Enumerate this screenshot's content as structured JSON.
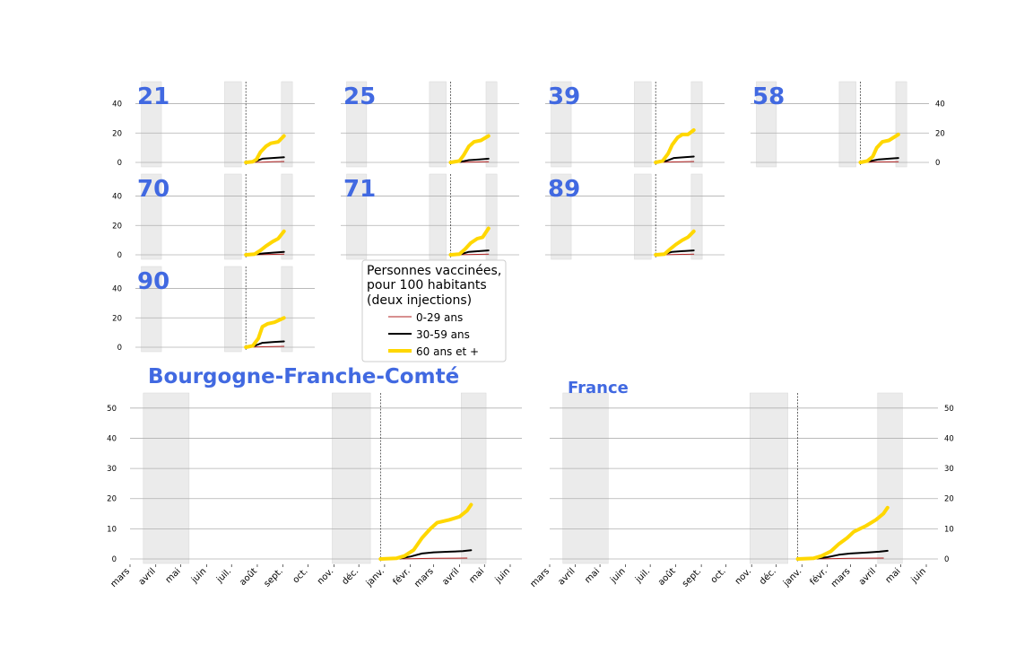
{
  "colors": {
    "title": "#4169e1",
    "shade": "#ebebeb",
    "grid": "#b0b0b0",
    "series": [
      "#b22222",
      "#000000",
      "#ffd700"
    ]
  },
  "legend": {
    "title_lines": [
      "Personnes vaccinées,",
      "pour 100 habitants",
      "(deux injections)"
    ],
    "entries": [
      "0-29 ans",
      "30-59 ans",
      "60 ans et +"
    ]
  },
  "chart_data": [
    {
      "type": "line",
      "title": "21",
      "x_axis": "date (2020-03 to 2021-06)",
      "ylim": [
        0,
        55
      ],
      "yticks": [
        0,
        20,
        40
      ],
      "shaded_periods": [
        [
          "2020-03-17",
          "2020-05-11"
        ],
        [
          "2020-10-30",
          "2020-12-15"
        ],
        [
          "2021-04-03",
          "2021-05-03"
        ]
      ],
      "vline": "2020-12-27",
      "series": [
        {
          "name": "0-29 ans",
          "x": [
            "2020-12-27",
            "2021-02-10",
            "2021-03-10",
            "2021-04-10"
          ],
          "values": [
            0,
            0.2,
            0.4,
            0.6
          ]
        },
        {
          "name": "30-59 ans",
          "x": [
            "2020-12-27",
            "2021-01-20",
            "2021-02-10",
            "2021-03-10",
            "2021-04-10"
          ],
          "values": [
            0,
            0.5,
            2.5,
            3,
            3.5
          ]
        },
        {
          "name": "60 ans et +",
          "x": [
            "2020-12-27",
            "2021-01-15",
            "2021-01-25",
            "2021-02-05",
            "2021-02-20",
            "2021-03-05",
            "2021-03-25",
            "2021-04-10"
          ],
          "values": [
            0,
            0.5,
            2,
            7,
            11,
            13,
            14,
            18
          ]
        }
      ]
    },
    {
      "type": "line",
      "title": "25",
      "x_axis": "date (2020-03 to 2021-06)",
      "ylim": [
        0,
        55
      ],
      "yticks": [
        0,
        20,
        40
      ],
      "shaded_periods": [
        [
          "2020-03-17",
          "2020-05-11"
        ],
        [
          "2020-10-30",
          "2020-12-15"
        ],
        [
          "2021-04-03",
          "2021-05-03"
        ]
      ],
      "vline": "2020-12-27",
      "series": [
        {
          "name": "0-29 ans",
          "x": [
            "2020-12-27",
            "2021-02-10",
            "2021-04-10"
          ],
          "values": [
            0,
            0.2,
            0.5
          ]
        },
        {
          "name": "30-59 ans",
          "x": [
            "2020-12-27",
            "2021-01-25",
            "2021-02-15",
            "2021-03-15",
            "2021-04-10"
          ],
          "values": [
            0,
            0.5,
            1.5,
            2,
            2.5
          ]
        },
        {
          "name": "60 ans et +",
          "x": [
            "2020-12-27",
            "2021-01-20",
            "2021-02-01",
            "2021-02-15",
            "2021-03-01",
            "2021-03-20",
            "2021-04-10"
          ],
          "values": [
            0,
            1,
            5,
            11,
            14,
            15,
            18
          ]
        }
      ]
    },
    {
      "type": "line",
      "title": "39",
      "x_axis": "date (2020-03 to 2021-06)",
      "ylim": [
        0,
        55
      ],
      "yticks": [
        0,
        20,
        40
      ],
      "shaded_periods": [
        [
          "2020-03-17",
          "2020-05-11"
        ],
        [
          "2020-10-30",
          "2020-12-15"
        ],
        [
          "2021-04-03",
          "2021-05-03"
        ]
      ],
      "vline": "2020-12-27",
      "series": [
        {
          "name": "0-29 ans",
          "x": [
            "2020-12-27",
            "2021-02-10",
            "2021-04-10"
          ],
          "values": [
            0,
            0.3,
            0.6
          ]
        },
        {
          "name": "30-59 ans",
          "x": [
            "2020-12-27",
            "2021-01-25",
            "2021-02-15",
            "2021-03-15",
            "2021-04-10"
          ],
          "values": [
            0,
            1,
            3,
            3.5,
            4
          ]
        },
        {
          "name": "60 ans et +",
          "x": [
            "2020-12-27",
            "2021-01-15",
            "2021-01-30",
            "2021-02-10",
            "2021-02-25",
            "2021-03-10",
            "2021-03-25",
            "2021-04-10"
          ],
          "values": [
            0,
            1,
            6,
            12,
            17,
            19,
            19,
            22
          ]
        }
      ]
    },
    {
      "type": "line",
      "title": "58",
      "x_axis": "date (2020-03 to 2021-06)",
      "ylim": [
        0,
        55
      ],
      "yticks": [
        0,
        20,
        40
      ],
      "shaded_periods": [
        [
          "2020-03-17",
          "2020-05-11"
        ],
        [
          "2020-10-30",
          "2020-12-15"
        ],
        [
          "2021-04-03",
          "2021-05-03"
        ]
      ],
      "vline": "2020-12-27",
      "series": [
        {
          "name": "0-29 ans",
          "x": [
            "2020-12-27",
            "2021-02-10",
            "2021-04-10"
          ],
          "values": [
            0,
            0.3,
            0.5
          ]
        },
        {
          "name": "30-59 ans",
          "x": [
            "2020-12-27",
            "2021-01-25",
            "2021-02-15",
            "2021-03-15",
            "2021-04-10"
          ],
          "values": [
            0,
            1,
            2,
            2.5,
            3
          ]
        },
        {
          "name": "60 ans et +",
          "x": [
            "2020-12-27",
            "2021-01-15",
            "2021-01-30",
            "2021-02-10",
            "2021-02-25",
            "2021-03-15",
            "2021-04-10"
          ],
          "values": [
            0,
            1,
            4,
            10,
            14,
            15,
            19
          ]
        }
      ]
    },
    {
      "type": "line",
      "title": "70",
      "x_axis": "date (2020-03 to 2021-06)",
      "ylim": [
        0,
        55
      ],
      "yticks": [
        0,
        20,
        40
      ],
      "shaded_periods": [
        [
          "2020-03-17",
          "2020-05-11"
        ],
        [
          "2020-10-30",
          "2020-12-15"
        ],
        [
          "2021-04-03",
          "2021-05-03"
        ]
      ],
      "vline": "2020-12-27",
      "series": [
        {
          "name": "0-29 ans",
          "x": [
            "2020-12-27",
            "2021-02-10",
            "2021-04-10"
          ],
          "values": [
            0,
            0.2,
            0.5
          ]
        },
        {
          "name": "30-59 ans",
          "x": [
            "2020-12-27",
            "2021-01-25",
            "2021-02-15",
            "2021-03-15",
            "2021-04-10"
          ],
          "values": [
            0,
            0.5,
            1,
            1.5,
            2
          ]
        },
        {
          "name": "60 ans et +",
          "x": [
            "2020-12-27",
            "2021-01-20",
            "2021-02-05",
            "2021-02-20",
            "2021-03-10",
            "2021-03-25",
            "2021-04-10"
          ],
          "values": [
            0,
            0.5,
            3,
            6,
            9,
            11,
            16
          ]
        }
      ]
    },
    {
      "type": "line",
      "title": "71",
      "x_axis": "date (2020-03 to 2021-06)",
      "ylim": [
        0,
        55
      ],
      "yticks": [
        0,
        20,
        40
      ],
      "shaded_periods": [
        [
          "2020-03-17",
          "2020-05-11"
        ],
        [
          "2020-10-30",
          "2020-12-15"
        ],
        [
          "2021-04-03",
          "2021-05-03"
        ]
      ],
      "vline": "2020-12-27",
      "series": [
        {
          "name": "0-29 ans",
          "x": [
            "2020-12-27",
            "2021-02-10",
            "2021-04-10"
          ],
          "values": [
            0,
            0.2,
            0.5
          ]
        },
        {
          "name": "30-59 ans",
          "x": [
            "2020-12-27",
            "2021-01-25",
            "2021-02-15",
            "2021-03-15",
            "2021-04-10"
          ],
          "values": [
            0,
            0.5,
            2,
            2.5,
            3
          ]
        },
        {
          "name": "60 ans et +",
          "x": [
            "2020-12-27",
            "2021-01-20",
            "2021-02-05",
            "2021-02-20",
            "2021-03-10",
            "2021-03-25",
            "2021-04-10"
          ],
          "values": [
            0,
            0.5,
            4,
            8,
            11,
            12,
            18
          ]
        }
      ]
    },
    {
      "type": "line",
      "title": "89",
      "x_axis": "date (2020-03 to 2021-06)",
      "ylim": [
        0,
        55
      ],
      "yticks": [
        0,
        20,
        40
      ],
      "shaded_periods": [
        [
          "2020-03-17",
          "2020-05-11"
        ],
        [
          "2020-10-30",
          "2020-12-15"
        ],
        [
          "2021-04-03",
          "2021-05-03"
        ]
      ],
      "vline": "2020-12-27",
      "series": [
        {
          "name": "0-29 ans",
          "x": [
            "2020-12-27",
            "2021-02-10",
            "2021-04-10"
          ],
          "values": [
            0,
            0.2,
            0.5
          ]
        },
        {
          "name": "30-59 ans",
          "x": [
            "2020-12-27",
            "2021-01-20",
            "2021-02-10",
            "2021-03-10",
            "2021-04-10"
          ],
          "values": [
            0,
            0.5,
            2,
            2.5,
            3
          ]
        },
        {
          "name": "60 ans et +",
          "x": [
            "2020-12-27",
            "2021-01-20",
            "2021-02-05",
            "2021-02-20",
            "2021-03-10",
            "2021-03-25",
            "2021-04-10"
          ],
          "values": [
            0,
            0.5,
            4,
            7,
            10,
            12,
            16
          ]
        }
      ]
    },
    {
      "type": "line",
      "title": "90",
      "x_axis": "date (2020-03 to 2021-06)",
      "ylim": [
        0,
        55
      ],
      "yticks": [
        0,
        20,
        40
      ],
      "shaded_periods": [
        [
          "2020-03-17",
          "2020-05-11"
        ],
        [
          "2020-10-30",
          "2020-12-15"
        ],
        [
          "2021-04-03",
          "2021-05-03"
        ]
      ],
      "vline": "2020-12-27",
      "series": [
        {
          "name": "0-29 ans",
          "x": [
            "2020-12-27",
            "2021-02-10",
            "2021-04-10"
          ],
          "values": [
            0,
            0.3,
            0.6
          ]
        },
        {
          "name": "30-59 ans",
          "x": [
            "2020-12-27",
            "2021-01-20",
            "2021-02-10",
            "2021-03-10",
            "2021-04-10"
          ],
          "values": [
            0,
            1,
            3,
            3.5,
            4
          ]
        },
        {
          "name": "60 ans et +",
          "x": [
            "2020-12-27",
            "2021-01-15",
            "2021-01-30",
            "2021-02-10",
            "2021-02-25",
            "2021-03-15",
            "2021-04-10"
          ],
          "values": [
            0,
            1,
            6,
            14,
            16,
            17,
            20
          ]
        }
      ]
    },
    {
      "type": "line",
      "title": "Bourgogne-Franche-Comté",
      "x_axis": "date (2020-03 to 2021-06)",
      "ylim": [
        0,
        55
      ],
      "yticks": [
        0,
        10,
        20,
        30,
        40,
        50
      ],
      "xticks": [
        "mars",
        "avril",
        "mai",
        "juin",
        "juil.",
        "août",
        "sept.",
        "oct.",
        "nov.",
        "déc.",
        "janv.",
        "févr.",
        "mars",
        "avril",
        "mai",
        "juin"
      ],
      "shaded_periods": [
        [
          "2020-03-17",
          "2020-05-11"
        ],
        [
          "2020-10-30",
          "2020-12-15"
        ],
        [
          "2021-04-03",
          "2021-05-03"
        ]
      ],
      "vline": "2020-12-27",
      "series": [
        {
          "name": "0-29 ans",
          "x": [
            "2020-12-27",
            "2021-02-01",
            "2021-03-01",
            "2021-04-10"
          ],
          "values": [
            0,
            0.1,
            0.2,
            0.3
          ]
        },
        {
          "name": "30-59 ans",
          "x": [
            "2020-12-27",
            "2021-01-20",
            "2021-02-01",
            "2021-02-15",
            "2021-03-01",
            "2021-03-20",
            "2021-04-05",
            "2021-04-15"
          ],
          "values": [
            0,
            0.2,
            0.8,
            1.8,
            2.2,
            2.4,
            2.6,
            2.9
          ]
        },
        {
          "name": "60 ans et +",
          "x": [
            "2020-12-27",
            "2021-01-15",
            "2021-01-25",
            "2021-02-05",
            "2021-02-15",
            "2021-02-25",
            "2021-03-05",
            "2021-03-20",
            "2021-04-01",
            "2021-04-10",
            "2021-04-15"
          ],
          "values": [
            0,
            0.2,
            1,
            3,
            7,
            10,
            12,
            13,
            14,
            16,
            18
          ]
        }
      ]
    },
    {
      "type": "line",
      "title": "France",
      "x_axis": "date (2020-03 to 2021-06)",
      "ylim": [
        0,
        55
      ],
      "yticks": [
        0,
        10,
        20,
        30,
        40,
        50
      ],
      "xticks": [
        "mars",
        "avril",
        "mai",
        "juin",
        "juil.",
        "août",
        "sept.",
        "oct.",
        "nov.",
        "déc.",
        "janv.",
        "févr.",
        "mars",
        "avril",
        "mai",
        "juin"
      ],
      "shaded_periods": [
        [
          "2020-03-17",
          "2020-05-11"
        ],
        [
          "2020-10-30",
          "2020-12-15"
        ],
        [
          "2021-04-03",
          "2021-05-03"
        ]
      ],
      "vline": "2020-12-27",
      "series": [
        {
          "name": "0-29 ans",
          "x": [
            "2020-12-27",
            "2021-02-01",
            "2021-03-01",
            "2021-04-10"
          ],
          "values": [
            0,
            0.1,
            0.2,
            0.3
          ]
        },
        {
          "name": "30-59 ans",
          "x": [
            "2020-12-27",
            "2021-01-20",
            "2021-02-01",
            "2021-02-15",
            "2021-03-01",
            "2021-03-20",
            "2021-04-05",
            "2021-04-15"
          ],
          "values": [
            0,
            0.2,
            0.6,
            1.4,
            1.8,
            2.1,
            2.4,
            2.7
          ]
        },
        {
          "name": "60 ans et +",
          "x": [
            "2020-12-27",
            "2021-01-15",
            "2021-01-25",
            "2021-02-05",
            "2021-02-15",
            "2021-02-25",
            "2021-03-05",
            "2021-03-20",
            "2021-04-01",
            "2021-04-10",
            "2021-04-15"
          ],
          "values": [
            0,
            0.2,
            1,
            2.5,
            5,
            7,
            9,
            11,
            13,
            15,
            17
          ]
        }
      ]
    }
  ]
}
